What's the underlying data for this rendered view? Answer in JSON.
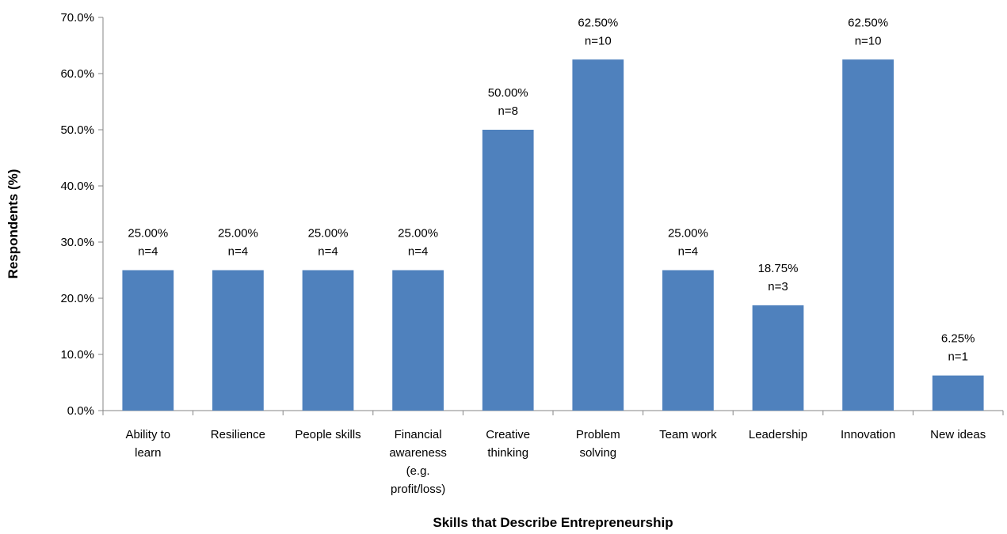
{
  "chart_data": {
    "type": "bar",
    "xlabel": "Skills that Describe Entrepreneurship",
    "ylabel": "Respondents (%)",
    "ylim": [
      0,
      70
    ],
    "y_ticks": [
      "0.0%",
      "10.0%",
      "20.0%",
      "30.0%",
      "40.0%",
      "50.0%",
      "60.0%",
      "70.0%"
    ],
    "grid": false,
    "categories": [
      [
        "Ability to",
        "learn"
      ],
      [
        "Resilience"
      ],
      [
        "People skills"
      ],
      [
        "Financial",
        "awareness",
        "(e.g.",
        "profit/loss)"
      ],
      [
        "Creative",
        "thinking"
      ],
      [
        "Problem",
        "solving"
      ],
      [
        "Team work"
      ],
      [
        "Leadership"
      ],
      [
        "Innovation"
      ],
      [
        "New ideas"
      ]
    ],
    "values": [
      25.0,
      25.0,
      25.0,
      25.0,
      50.0,
      62.5,
      25.0,
      18.75,
      62.5,
      6.25
    ],
    "data_labels": [
      [
        "25.00%",
        "n=4"
      ],
      [
        "25.00%",
        "n=4"
      ],
      [
        "25.00%",
        "n=4"
      ],
      [
        "25.00%",
        "n=4"
      ],
      [
        "50.00%",
        "n=8"
      ],
      [
        "62.50%",
        "n=10"
      ],
      [
        "25.00%",
        "n=4"
      ],
      [
        "18.75%",
        "n=3"
      ],
      [
        "62.50%",
        "n=10"
      ],
      [
        "6.25%",
        "n=1"
      ]
    ],
    "bar_color": "#4f81bd"
  }
}
